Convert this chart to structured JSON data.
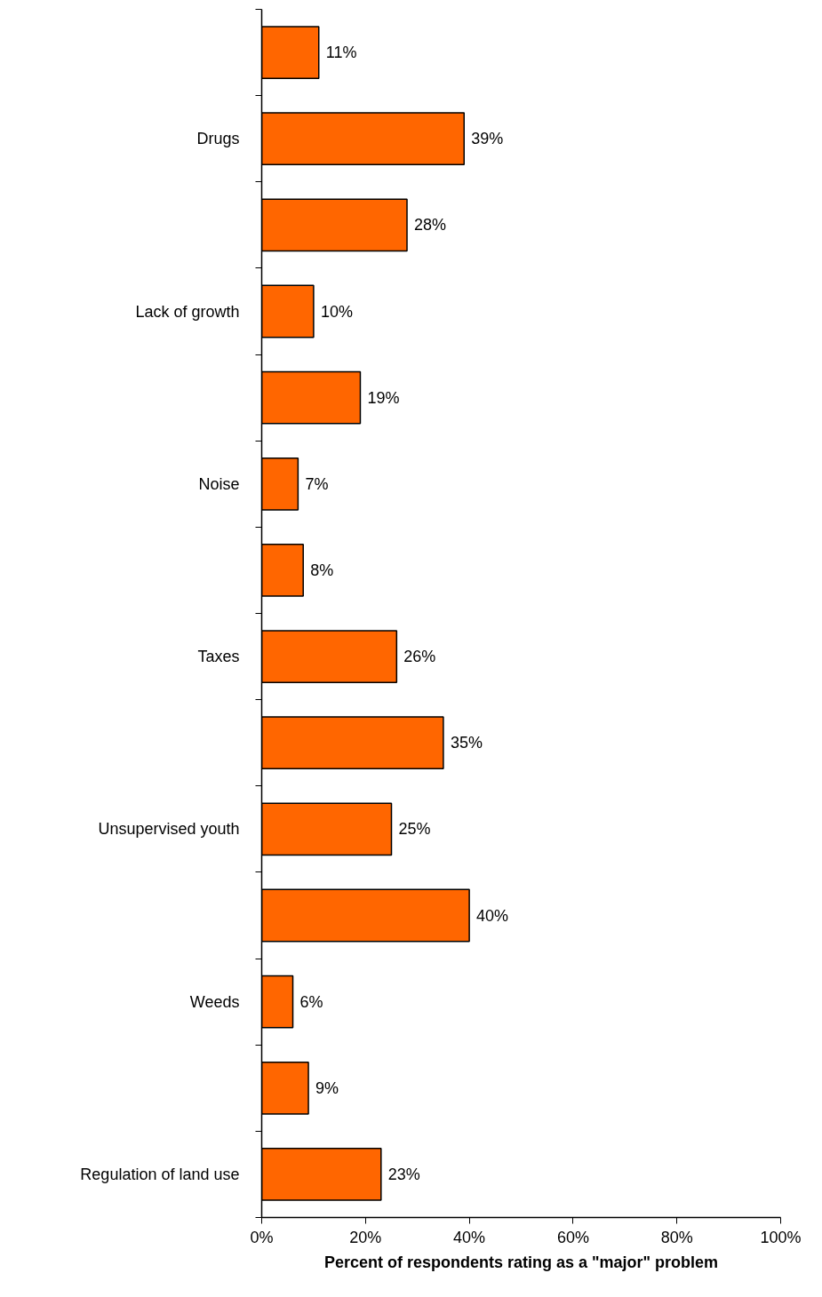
{
  "chart_data": {
    "type": "bar",
    "orientation": "horizontal",
    "xlabel": "Percent of respondents rating as a \"major\" problem",
    "categories": [
      null,
      "Drugs",
      null,
      "Lack of growth",
      null,
      "Noise",
      null,
      "Taxes",
      null,
      "Unsupervised youth",
      null,
      "Weeds",
      null,
      "Regulation of land use"
    ],
    "values": [
      11,
      39,
      28,
      10,
      19,
      7,
      8,
      26,
      35,
      25,
      40,
      6,
      9,
      23
    ],
    "value_labels": [
      "11%",
      "39%",
      "28%",
      "10%",
      "19%",
      "7%",
      "8%",
      "26%",
      "35%",
      "25%",
      "40%",
      "6%",
      "9%",
      "23%"
    ],
    "color": "#ff6600",
    "xlim": [
      0,
      100
    ],
    "xticks": [
      {
        "value": 0,
        "label": "0%"
      },
      {
        "value": 20,
        "label": "20%"
      },
      {
        "value": 40,
        "label": "40%"
      },
      {
        "value": 60,
        "label": "60%"
      },
      {
        "value": 80,
        "label": "80%"
      },
      {
        "value": 100,
        "label": "100%"
      }
    ],
    "grid": false
  }
}
